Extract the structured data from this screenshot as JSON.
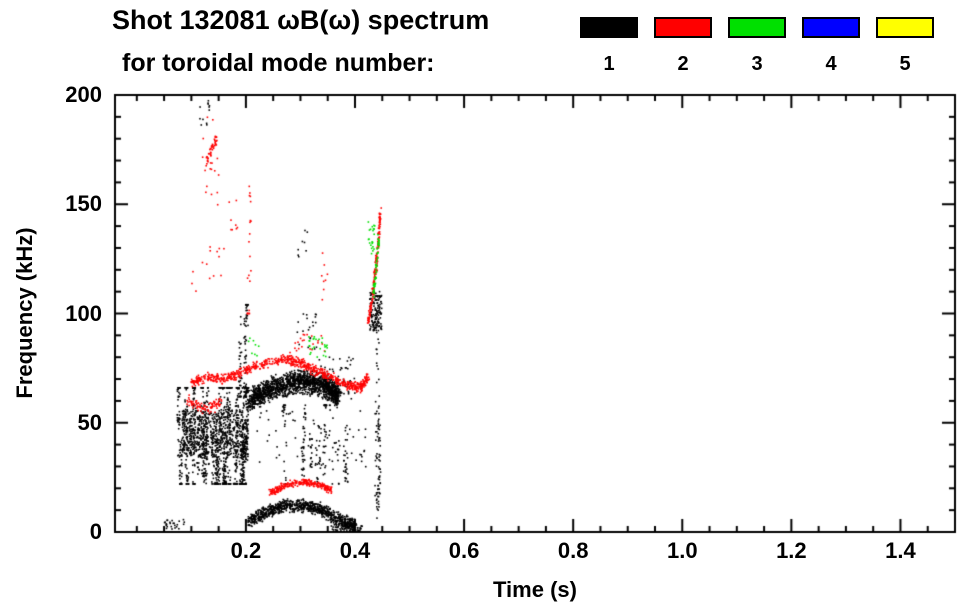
{
  "header": {
    "title": "Shot 132081 ωB(ω) spectrum",
    "subtitle": "for toroidal mode number:"
  },
  "legend": {
    "entries": [
      {
        "label": "1",
        "color": "#000000"
      },
      {
        "label": "2",
        "color": "#ff0000"
      },
      {
        "label": "3",
        "color": "#00e000"
      },
      {
        "label": "4",
        "color": "#0000ff"
      },
      {
        "label": "5",
        "color": "#ffff00"
      }
    ]
  },
  "chart_data": {
    "type": "scatter",
    "title": "Shot 132081 ωB(ω) spectrum",
    "subtitle": "for toroidal mode number:",
    "xlabel": "Time (s)",
    "ylabel": "Frequency (kHz)",
    "xlim": [
      -0.04,
      1.5
    ],
    "ylim": [
      0,
      200
    ],
    "x_major_ticks": [
      0.2,
      0.4,
      0.6,
      0.8,
      1.0,
      1.2,
      1.4
    ],
    "x_tick_labels": [
      "0.2",
      "0.4",
      "0.6",
      "0.8",
      "1.0",
      "1.2",
      "1.4"
    ],
    "x_minor_step": 0.05,
    "y_major_ticks": [
      0,
      50,
      100,
      150,
      200
    ],
    "y_tick_labels": [
      "0",
      "50",
      "100",
      "150",
      "200"
    ],
    "y_minor_step": 10,
    "grid": false,
    "legend_position": "top-right",
    "seed": 42,
    "point_size": 1.6,
    "series": [
      {
        "name": "1",
        "mode_number": 1,
        "color": "#000000",
        "clusters": [
          {
            "type": "streaks",
            "t": [
              0.075,
              0.205
            ],
            "f": [
              22,
              66
            ],
            "cols": 48,
            "perCol": [
              12,
              42
            ]
          },
          {
            "type": "blob",
            "t": [
              0.082,
              0.2
            ],
            "f": [
              34,
              56
            ],
            "n": 500
          },
          {
            "type": "curve",
            "pts": [
              [
                0.205,
                60
              ],
              [
                0.25,
                66
              ],
              [
                0.3,
                69
              ],
              [
                0.345,
                67
              ],
              [
                0.37,
                62
              ]
            ],
            "n": 1600,
            "jt": 0.006,
            "jf": 6
          },
          {
            "type": "streaks",
            "t": [
              0.27,
              0.385
            ],
            "f": [
              22,
              58
            ],
            "cols": 14,
            "perCol": [
              4,
              18
            ]
          },
          {
            "type": "curve",
            "pts": [
              [
                0.205,
                5
              ],
              [
                0.24,
                9
              ],
              [
                0.27,
                12
              ],
              [
                0.31,
                12
              ],
              [
                0.34,
                10
              ],
              [
                0.375,
                5
              ],
              [
                0.4,
                3
              ]
            ],
            "n": 900,
            "jt": 0.004,
            "jf": 3.5
          },
          {
            "type": "streaks",
            "t": [
              0.18,
              0.215
            ],
            "f": [
              62,
              104
            ],
            "cols": 6,
            "perCol": [
              8,
              26
            ]
          },
          {
            "type": "streaks",
            "t": [
              0.437,
              0.445
            ],
            "f": [
              0,
              108
            ],
            "cols": 3,
            "perCol": [
              25,
              50
            ]
          },
          {
            "type": "blob",
            "t": [
              0.427,
              0.449
            ],
            "f": [
              92,
              110
            ],
            "n": 130
          },
          {
            "type": "blob",
            "t": [
              0.05,
              0.09
            ],
            "f": [
              1,
              6
            ],
            "n": 25
          },
          {
            "type": "blob",
            "t": [
              0.115,
              0.135
            ],
            "f": [
              186,
              198
            ],
            "n": 12
          },
          {
            "type": "blob",
            "t": [
              0.355,
              0.415
            ],
            "f": [
              0,
              4
            ],
            "n": 70
          },
          {
            "type": "blob",
            "t": [
              0.22,
              0.42
            ],
            "f": [
              28,
              56
            ],
            "n": 70
          },
          {
            "type": "blob",
            "t": [
              0.33,
              0.4
            ],
            "f": [
              60,
              80
            ],
            "n": 60
          },
          {
            "type": "blob",
            "t": [
              0.29,
              0.33
            ],
            "f": [
              80,
              100
            ],
            "n": 20
          },
          {
            "type": "blob",
            "t": [
              0.295,
              0.315
            ],
            "f": [
              120,
              138
            ],
            "n": 8
          }
        ]
      },
      {
        "name": "2",
        "mode_number": 2,
        "color": "#ff0000",
        "clusters": [
          {
            "type": "curve",
            "pts": [
              [
                0.1,
                68
              ],
              [
                0.13,
                71
              ],
              [
                0.16,
                70
              ],
              [
                0.19,
                73
              ],
              [
                0.22,
                76
              ],
              [
                0.26,
                79
              ],
              [
                0.295,
                78
              ],
              [
                0.325,
                74
              ],
              [
                0.355,
                71
              ],
              [
                0.385,
                67
              ],
              [
                0.41,
                66
              ],
              [
                0.425,
                71
              ]
            ],
            "n": 750,
            "jt": 0.004,
            "jf": 2.6
          },
          {
            "type": "curve",
            "pts": [
              [
                0.095,
                60
              ],
              [
                0.125,
                56
              ],
              [
                0.155,
                59
              ]
            ],
            "n": 90,
            "jt": 0.004,
            "jf": 3
          },
          {
            "type": "curve",
            "pts": [
              [
                0.245,
                18
              ],
              [
                0.27,
                21
              ],
              [
                0.3,
                23
              ],
              [
                0.33,
                22
              ],
              [
                0.357,
                19
              ]
            ],
            "n": 260,
            "jt": 0.004,
            "jf": 1.8
          },
          {
            "type": "curve",
            "pts": [
              [
                0.125,
                167
              ],
              [
                0.136,
                175
              ],
              [
                0.147,
                180
              ]
            ],
            "n": 45,
            "jt": 0.002,
            "jf": 3
          },
          {
            "type": "blob",
            "t": [
              0.118,
              0.152
            ],
            "f": [
              148,
              196
            ],
            "n": 16
          },
          {
            "type": "streaks",
            "t": [
              0.195,
              0.207
            ],
            "f": [
              100,
              165
            ],
            "cols": 2,
            "perCol": [
              8,
              14
            ]
          },
          {
            "type": "curve",
            "pts": [
              [
                0.424,
                96
              ],
              [
                0.431,
                106
              ],
              [
                0.437,
                118
              ],
              [
                0.442,
                131
              ],
              [
                0.447,
                147
              ]
            ],
            "n": 170,
            "jt": 0.0025,
            "jf": 3
          },
          {
            "type": "blob",
            "t": [
              0.28,
              0.345
            ],
            "f": [
              82,
              92
            ],
            "n": 22
          },
          {
            "type": "blob",
            "t": [
              0.1,
              0.16
            ],
            "f": [
              108,
              132
            ],
            "n": 14
          },
          {
            "type": "blob",
            "t": [
              0.165,
              0.185
            ],
            "f": [
              138,
              152
            ],
            "n": 8
          },
          {
            "type": "blob",
            "t": [
              0.335,
              0.355
            ],
            "f": [
              100,
              130
            ],
            "n": 8
          }
        ]
      },
      {
        "name": "3",
        "mode_number": 3,
        "color": "#00e000",
        "clusters": [
          {
            "type": "blob",
            "t": [
              0.315,
              0.35
            ],
            "f": [
              80,
              90
            ],
            "n": 26
          },
          {
            "type": "curve",
            "pts": [
              [
                0.434,
                108
              ],
              [
                0.439,
                121
              ],
              [
                0.444,
                135
              ]
            ],
            "n": 55,
            "jt": 0.002,
            "jf": 2.5
          },
          {
            "type": "blob",
            "t": [
              0.424,
              0.437
            ],
            "f": [
              127,
              143
            ],
            "n": 22
          },
          {
            "type": "blob",
            "t": [
              0.2,
              0.225
            ],
            "f": [
              80,
              92
            ],
            "n": 8
          }
        ]
      },
      {
        "name": "4",
        "mode_number": 4,
        "color": "#0000ff",
        "clusters": []
      },
      {
        "name": "5",
        "mode_number": 5,
        "color": "#ffff00",
        "clusters": []
      }
    ]
  }
}
